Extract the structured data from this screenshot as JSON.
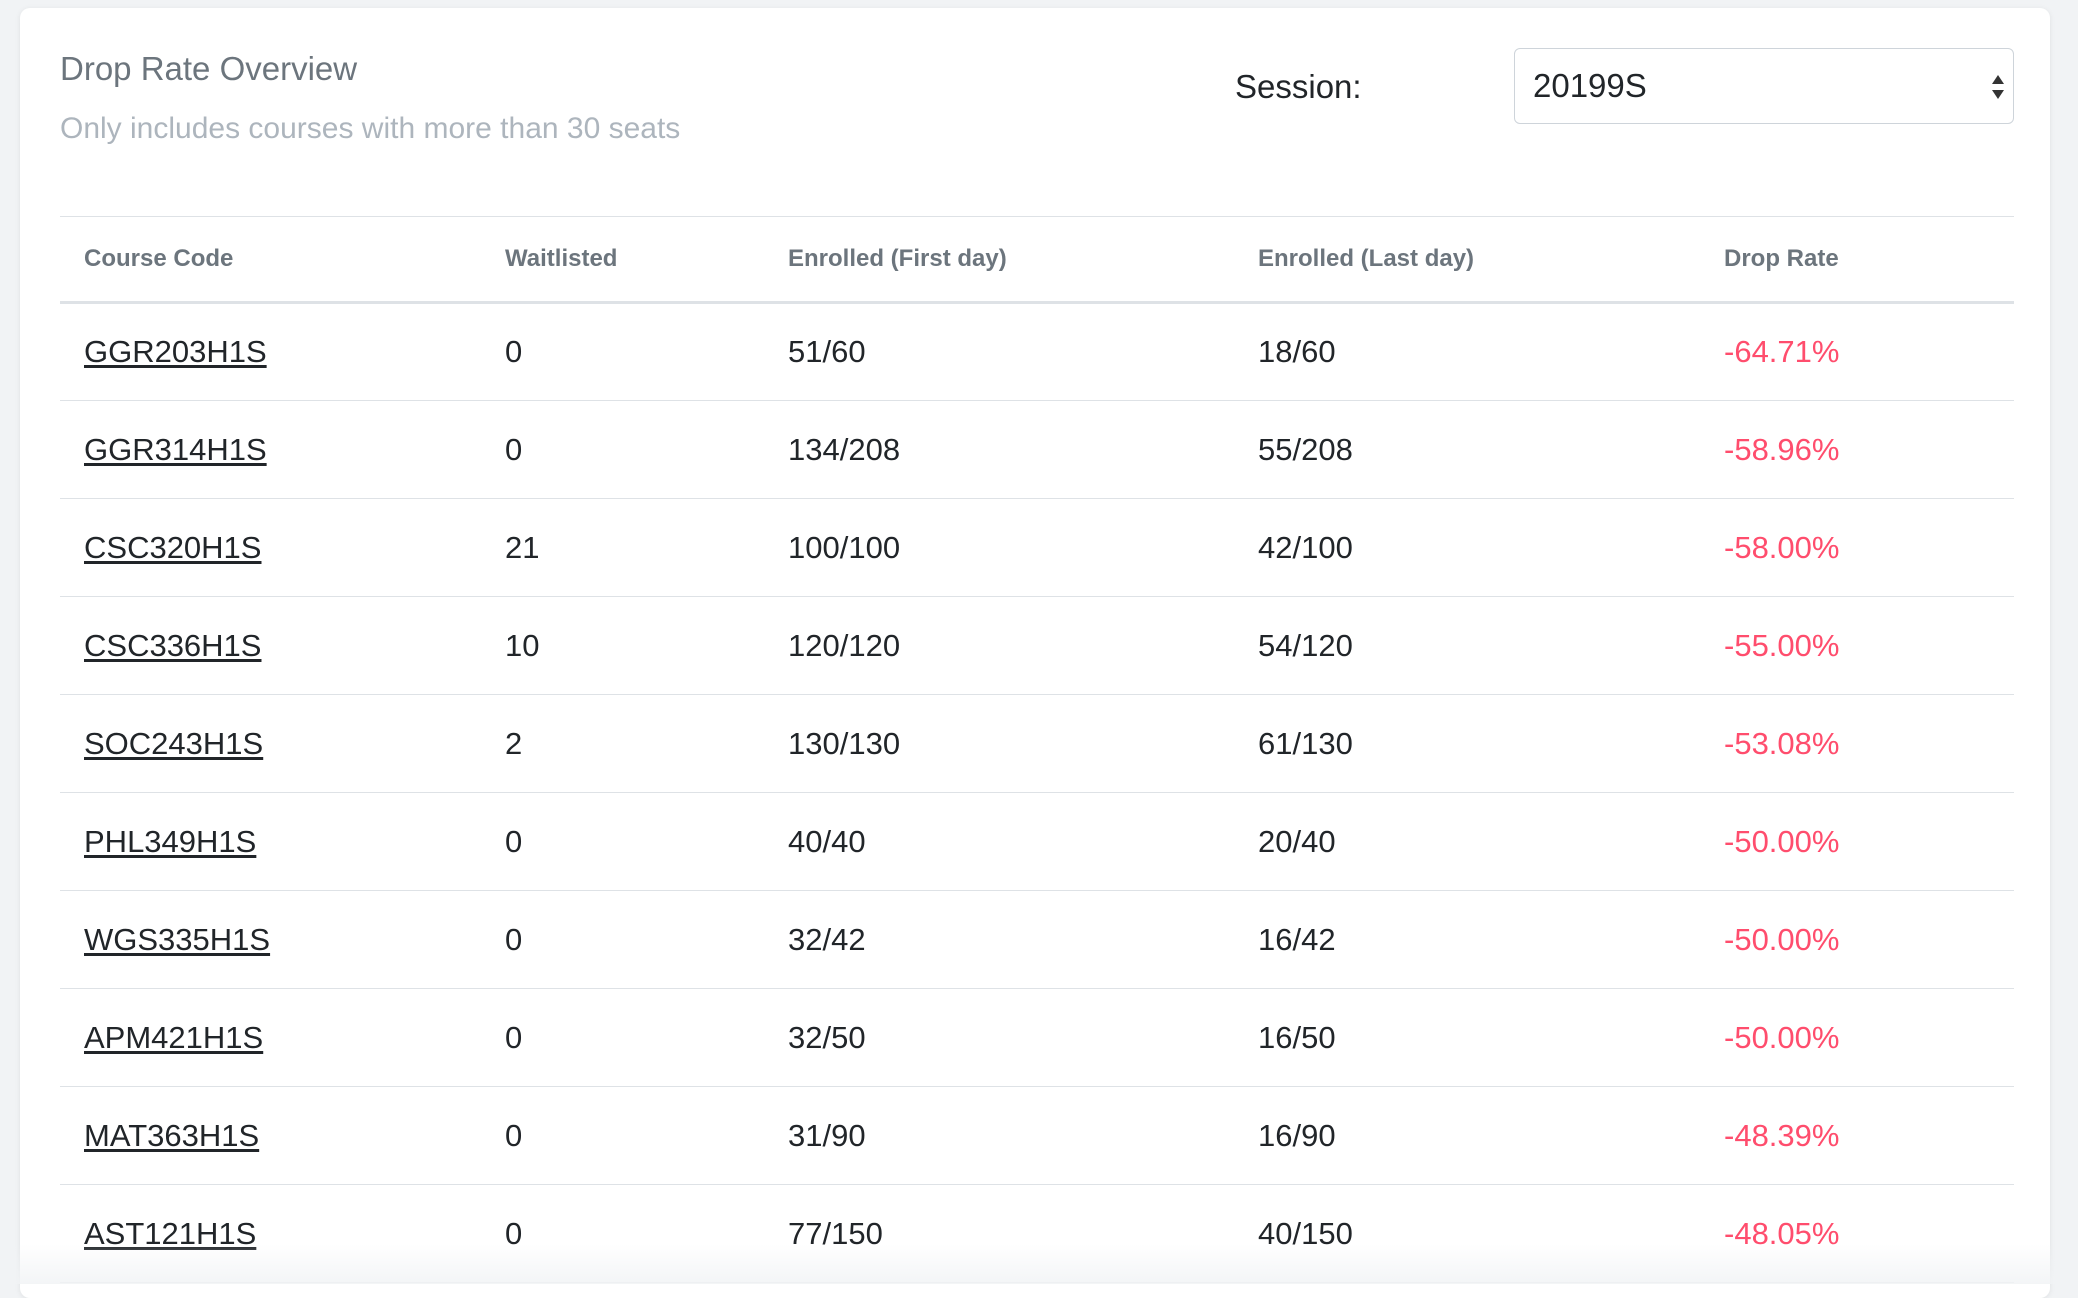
{
  "header": {
    "title": "Drop Rate Overview",
    "subtitle": "Only includes courses with more than 30 seats"
  },
  "session": {
    "label": "Session:",
    "selected": "20199S",
    "icon": "select-arrows-icon"
  },
  "table": {
    "columns": [
      "Course Code",
      "Waitlisted",
      "Enrolled (First day)",
      "Enrolled (Last day)",
      "Drop Rate"
    ],
    "rows": [
      {
        "code": "GGR203H1S",
        "waitlisted": "0",
        "first": "51/60",
        "last": "18/60",
        "drop": "-64.71%"
      },
      {
        "code": "GGR314H1S",
        "waitlisted": "0",
        "first": "134/208",
        "last": "55/208",
        "drop": "-58.96%"
      },
      {
        "code": "CSC320H1S",
        "waitlisted": "21",
        "first": "100/100",
        "last": "42/100",
        "drop": "-58.00%"
      },
      {
        "code": "CSC336H1S",
        "waitlisted": "10",
        "first": "120/120",
        "last": "54/120",
        "drop": "-55.00%"
      },
      {
        "code": "SOC243H1S",
        "waitlisted": "2",
        "first": "130/130",
        "last": "61/130",
        "drop": "-53.08%"
      },
      {
        "code": "PHL349H1S",
        "waitlisted": "0",
        "first": "40/40",
        "last": "20/40",
        "drop": "-50.00%"
      },
      {
        "code": "WGS335H1S",
        "waitlisted": "0",
        "first": "32/42",
        "last": "16/42",
        "drop": "-50.00%"
      },
      {
        "code": "APM421H1S",
        "waitlisted": "0",
        "first": "32/50",
        "last": "16/50",
        "drop": "-50.00%"
      },
      {
        "code": "MAT363H1S",
        "waitlisted": "0",
        "first": "31/90",
        "last": "16/90",
        "drop": "-48.39%"
      },
      {
        "code": "AST121H1S",
        "waitlisted": "0",
        "first": "77/150",
        "last": "40/150",
        "drop": "-48.05%"
      }
    ]
  },
  "colors": {
    "drop_rate": "#ff4d6d",
    "title": "#6c757d",
    "subtitle": "#adb5bd"
  }
}
